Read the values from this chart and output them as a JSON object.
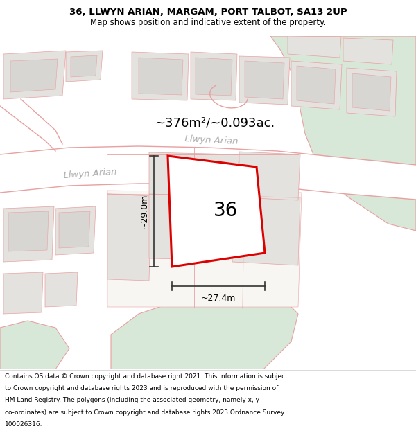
{
  "title_line1": "36, LLWYN ARIAN, MARGAM, PORT TALBOT, SA13 2UP",
  "title_line2": "Map shows position and indicative extent of the property.",
  "area_text": "~376m²/~0.093ac.",
  "plot_number": "36",
  "dim_height": "~29.0m",
  "dim_width": "~27.4m",
  "street_label1": "Llwyn Arian",
  "street_label2": "Llwyn Arian",
  "footer_lines": [
    "Contains OS data © Crown copyright and database right 2021. This information is subject",
    "to Crown copyright and database rights 2023 and is reproduced with the permission of",
    "HM Land Registry. The polygons (including the associated geometry, namely x, y",
    "co-ordinates) are subject to Crown copyright and database rights 2023 Ordnance Survey",
    "100026316."
  ],
  "map_bg": "#f5f3f0",
  "road_white": "#ffffff",
  "plot_fill": "#ffffff",
  "plot_edge": "#dd0000",
  "green_color": "#d8e8d8",
  "pink_line": "#e8a0a0",
  "gray_block": "#d8d6d2",
  "light_gray_block": "#e4e2de",
  "road_label_color": "#aaaaaa",
  "dim_color": "#333333"
}
